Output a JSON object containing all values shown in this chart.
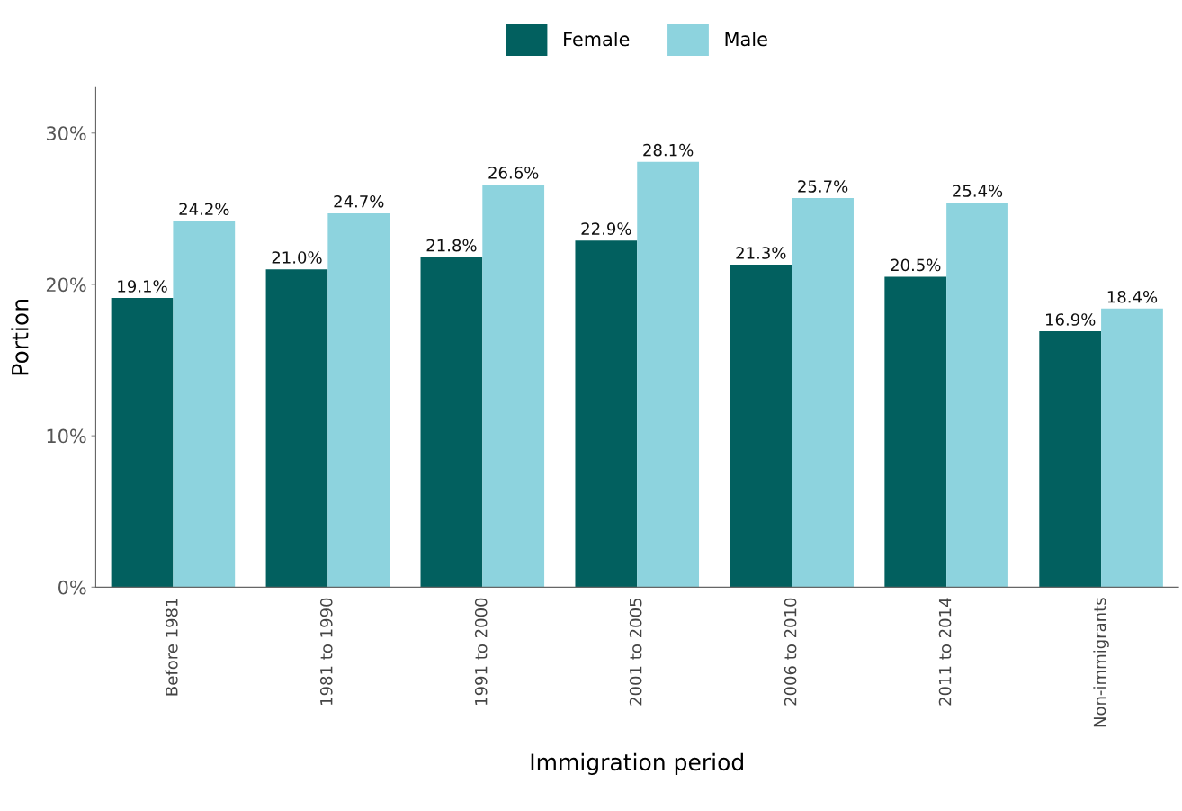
{
  "chart_data": {
    "type": "bar",
    "xlabel": "Immigration period",
    "ylabel": "Portion",
    "categories": [
      "Before 1981",
      "1981 to 1990",
      "1991 to 2000",
      "2001 to 2005",
      "2006 to 2010",
      "2011 to 2014",
      "Non-immigrants"
    ],
    "series": [
      {
        "name": "Female",
        "color": "#02605f",
        "values": [
          19.1,
          21.0,
          21.8,
          22.9,
          21.3,
          20.5,
          16.9
        ],
        "value_labels": [
          "19.1%",
          "21.0%",
          "21.8%",
          "22.9%",
          "21.3%",
          "20.5%",
          "16.9%"
        ]
      },
      {
        "name": "Male",
        "color": "#8dd3de",
        "values": [
          24.2,
          24.7,
          26.6,
          28.1,
          25.7,
          25.4,
          18.4
        ],
        "value_labels": [
          "24.2%",
          "24.7%",
          "26.6%",
          "28.1%",
          "25.7%",
          "25.4%",
          "18.4%"
        ]
      }
    ],
    "ylim": [
      0,
      33
    ],
    "yticks": [
      {
        "value": 0,
        "label": "0%"
      },
      {
        "value": 10,
        "label": "10%"
      },
      {
        "value": 20,
        "label": "20%"
      },
      {
        "value": 30,
        "label": "30%"
      }
    ],
    "grid": false,
    "legend": "top"
  }
}
